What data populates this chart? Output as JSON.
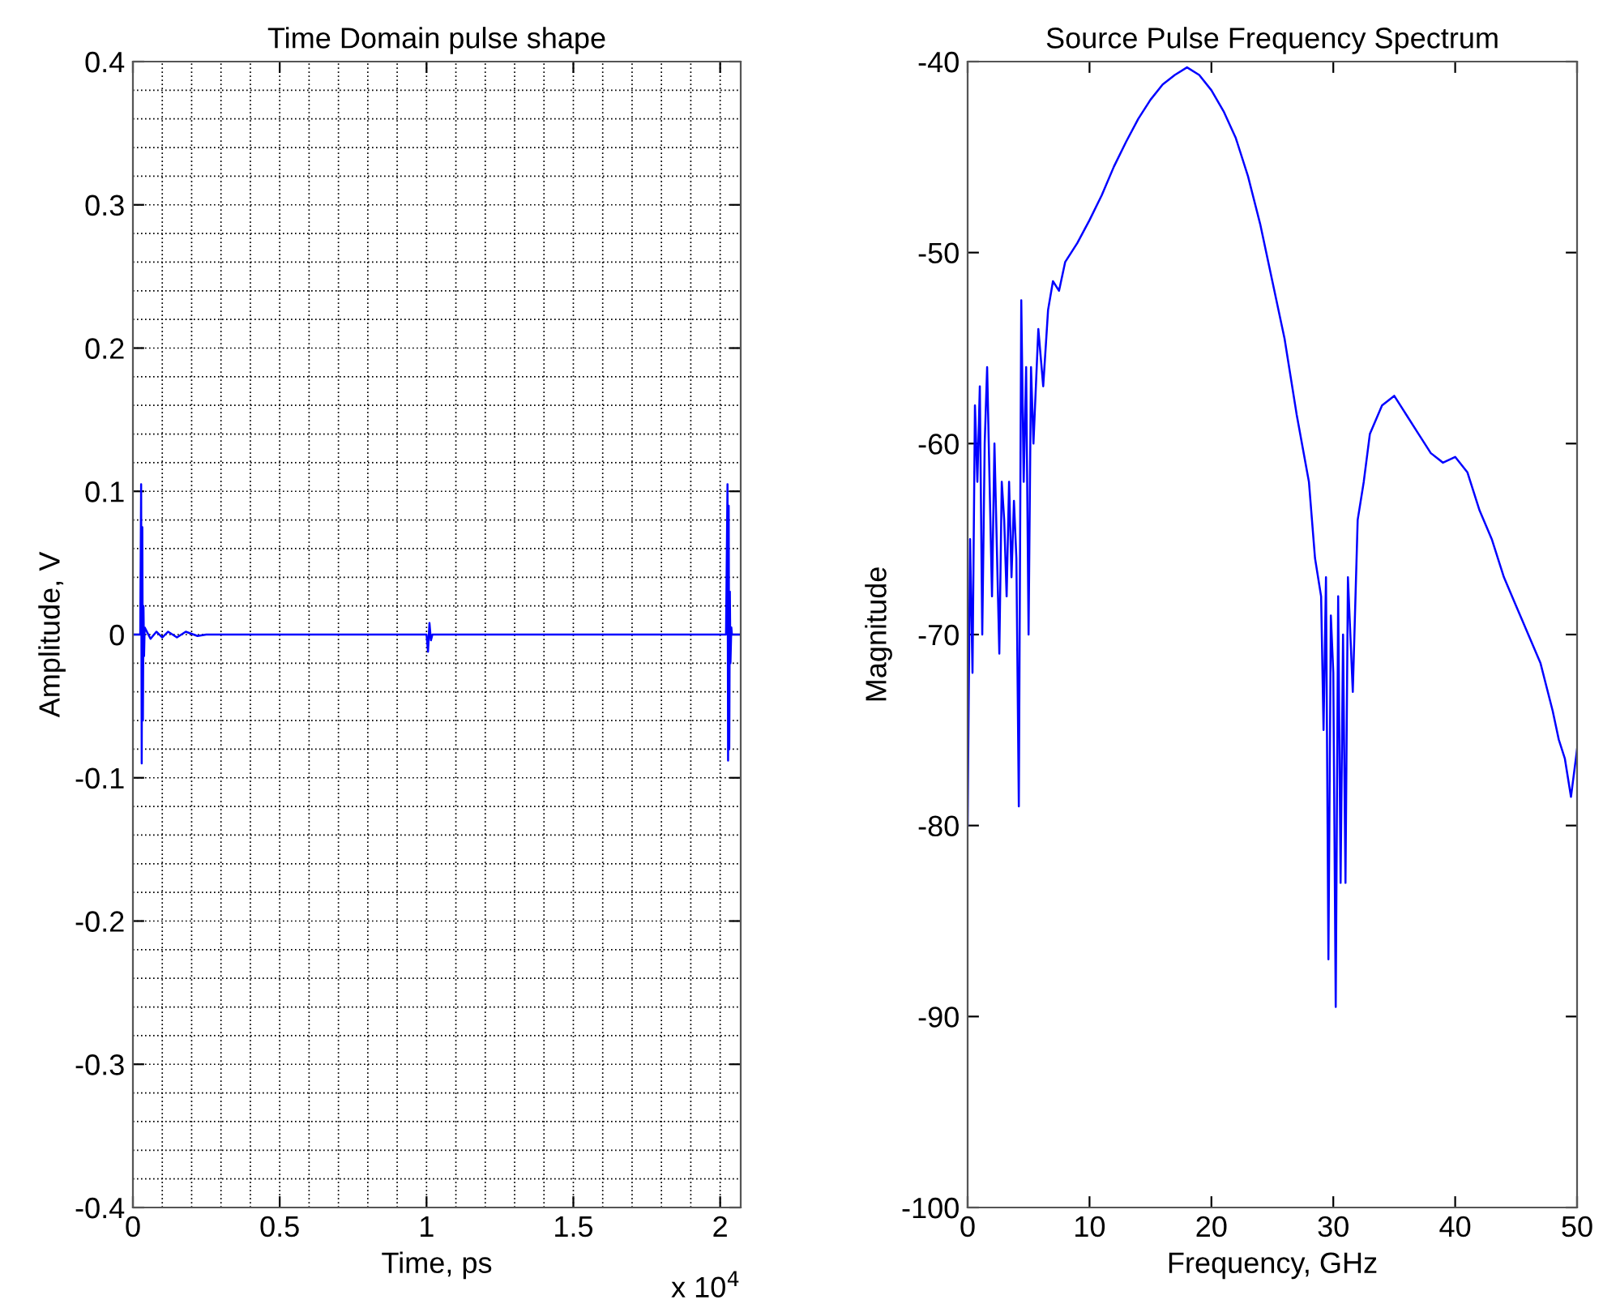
{
  "chart_data": [
    {
      "type": "line",
      "title": "Time Domain pulse shape",
      "xlabel": "Time, ps",
      "ylabel": "Amplitude, V",
      "annotations": [
        "x 10$^{4}$"
      ],
      "grid": true,
      "xlim": [
        0,
        2.07
      ],
      "ylim": [
        -0.4,
        0.4
      ],
      "xticks": [
        0,
        0.5,
        1,
        1.5,
        2
      ],
      "yticks": [
        -0.4,
        -0.3,
        -0.2,
        -0.1,
        0,
        0.1,
        0.2,
        0.3,
        0.4
      ],
      "series": [
        {
          "color": "#0000ff",
          "x": [
            0,
            0.025,
            0.028,
            0.03,
            0.032,
            0.034,
            0.036,
            0.038,
            0.04,
            0.06,
            0.08,
            0.1,
            0.12,
            0.15,
            0.18,
            0.22,
            0.25,
            1.0,
            1.005,
            1.01,
            1.015,
            1.02,
            2.02,
            2.025,
            2.027,
            2.029,
            2.031,
            2.033,
            2.035,
            2.038,
            2.04,
            2.07
          ],
          "values": [
            0,
            0,
            0.105,
            -0.09,
            0.075,
            -0.06,
            0.02,
            -0.015,
            0.005,
            -0.003,
            0.002,
            -0.002,
            0.002,
            -0.002,
            0.002,
            -0.001,
            0,
            0,
            -0.012,
            0.008,
            -0.004,
            0,
            0,
            0.105,
            -0.088,
            0.09,
            -0.08,
            0.03,
            -0.02,
            0.005,
            0,
            0
          ]
        }
      ]
    },
    {
      "type": "line",
      "title": "Source Pulse Frequency Spectrum",
      "xlabel": "Frequency, GHz",
      "ylabel": "Magnitude",
      "xlim": [
        0,
        50
      ],
      "ylim": [
        -100,
        -40
      ],
      "xticks": [
        0,
        10,
        20,
        30,
        40,
        50
      ],
      "yticks": [
        -100,
        -90,
        -80,
        -70,
        -60,
        -50,
        -40
      ],
      "series": [
        {
          "color": "#0000ff",
          "x": [
            0,
            0.2,
            0.4,
            0.6,
            0.8,
            1.0,
            1.2,
            1.4,
            1.6,
            2.0,
            2.2,
            2.6,
            2.8,
            3.0,
            3.2,
            3.4,
            3.6,
            3.8,
            4.0,
            4.2,
            4.4,
            4.6,
            4.8,
            5.0,
            5.2,
            5.4,
            5.8,
            6.2,
            6.6,
            7,
            7.5,
            8,
            9,
            10,
            11,
            12,
            13,
            14,
            15,
            16,
            17,
            18,
            19,
            20,
            21,
            22,
            23,
            24,
            25,
            26,
            27,
            28,
            28.5,
            29,
            29.2,
            29.4,
            29.6,
            29.8,
            30,
            30.2,
            30.4,
            30.6,
            30.8,
            31,
            31.2,
            31.6,
            32,
            32.5,
            33,
            34,
            35,
            36,
            37,
            38,
            39,
            40,
            41,
            42,
            43,
            44,
            45,
            46,
            47,
            48,
            48.5,
            49,
            49.5,
            50
          ],
          "values": [
            -80,
            -65,
            -72,
            -58,
            -62,
            -57,
            -70,
            -60,
            -56,
            -68,
            -60,
            -71,
            -62,
            -64,
            -68,
            -62,
            -67,
            -63,
            -66,
            -79,
            -52.5,
            -62,
            -56,
            -70,
            -56,
            -60,
            -54,
            -57,
            -53,
            -51.5,
            -52,
            -50.5,
            -49.5,
            -48.3,
            -47,
            -45.5,
            -44.2,
            -43,
            -42,
            -41.2,
            -40.7,
            -40.3,
            -40.7,
            -41.5,
            -42.6,
            -44,
            -46,
            -48.5,
            -51.5,
            -54.5,
            -58.5,
            -62,
            -66,
            -68,
            -75,
            -67,
            -87,
            -69,
            -72,
            -89.5,
            -68,
            -83,
            -70,
            -83,
            -67,
            -73,
            -64,
            -62,
            -59.5,
            -58,
            -57.5,
            -58.5,
            -59.5,
            -60.5,
            -61,
            -60.7,
            -61.5,
            -63.5,
            -65,
            -67,
            -68.5,
            -70,
            -71.5,
            -74,
            -75.5,
            -76.5,
            -78.5,
            -76
          ]
        }
      ]
    }
  ]
}
